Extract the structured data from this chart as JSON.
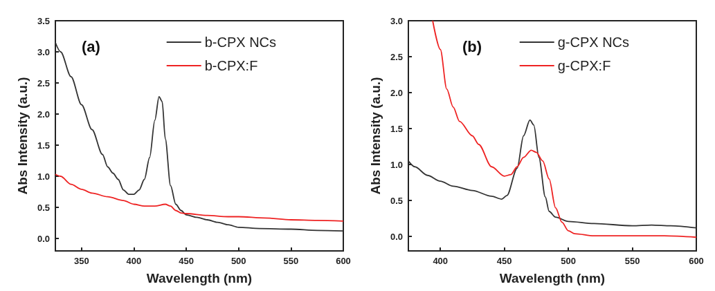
{
  "chart_data": [
    {
      "type": "line",
      "xlabel": "Wavelength (nm)",
      "ylabel": "Abs Intensity (a.u.)",
      "annotations": [
        "(a)"
      ],
      "xlim": [
        325,
        600
      ],
      "xticks": [
        350,
        400,
        450,
        500,
        550,
        600
      ],
      "ylim": [
        -0.2,
        3.5
      ],
      "yticks": [
        {
          "value": 0,
          "label": "0.0"
        },
        0.5,
        {
          "value": 1,
          "label": "1.0"
        },
        1.5,
        {
          "value": 2,
          "label": "2.0"
        },
        2.5,
        {
          "value": 3,
          "label": "3.0"
        },
        3.5
      ],
      "legend": "top",
      "grid": false,
      "marker": "none",
      "series": [
        {
          "name": "b-CPX NCs",
          "color": "#333333",
          "x": [
            325,
            330,
            340,
            350,
            360,
            370,
            375,
            380,
            385,
            390,
            395,
            400,
            405,
            410,
            415,
            420,
            424,
            427,
            430,
            435,
            440,
            445,
            450,
            460,
            470,
            480,
            490,
            500,
            520,
            550,
            575,
            600
          ],
          "values": [
            3.15,
            3.0,
            2.6,
            2.15,
            1.75,
            1.35,
            1.15,
            1.05,
            0.95,
            0.78,
            0.71,
            0.71,
            0.78,
            0.95,
            1.3,
            1.9,
            2.28,
            2.2,
            1.6,
            0.85,
            0.55,
            0.45,
            0.38,
            0.34,
            0.3,
            0.26,
            0.22,
            0.18,
            0.16,
            0.15,
            0.13,
            0.12
          ]
        },
        {
          "name": "b-CPX:F",
          "color": "#ee2222",
          "x": [
            325,
            330,
            340,
            350,
            360,
            375,
            390,
            400,
            410,
            420,
            430,
            435,
            440,
            445,
            450,
            470,
            490,
            500,
            525,
            550,
            575,
            600
          ],
          "values": [
            1.03,
            1.0,
            0.87,
            0.79,
            0.73,
            0.67,
            0.61,
            0.55,
            0.52,
            0.52,
            0.55,
            0.52,
            0.45,
            0.41,
            0.4,
            0.37,
            0.35,
            0.35,
            0.33,
            0.3,
            0.29,
            0.28
          ]
        }
      ]
    },
    {
      "type": "line",
      "xlabel": "Wavelength (nm)",
      "ylabel": "Abs Intensity (a.u.)",
      "annotations": [
        "(b)"
      ],
      "xlim": [
        375,
        600
      ],
      "xticks": [
        400,
        450,
        500,
        550,
        600
      ],
      "ylim": [
        -0.2,
        3.0
      ],
      "yticks": [
        {
          "value": 0,
          "label": "0.0"
        },
        0.5,
        {
          "value": 1,
          "label": "1.0"
        },
        1.5,
        {
          "value": 2,
          "label": "2.0"
        },
        2.5,
        {
          "value": 3,
          "label": "3.0"
        }
      ],
      "legend": "top",
      "grid": false,
      "marker": "none",
      "series": [
        {
          "name": "g-CPX NCs",
          "color": "#333333",
          "x": [
            375,
            380,
            390,
            400,
            410,
            425,
            440,
            448,
            452,
            460,
            465,
            470,
            473,
            477,
            482,
            485,
            490,
            500,
            520,
            550,
            565,
            580,
            600
          ],
          "values": [
            1.05,
            0.97,
            0.85,
            0.77,
            0.7,
            0.64,
            0.56,
            0.52,
            0.57,
            0.95,
            1.4,
            1.62,
            1.55,
            1.1,
            0.55,
            0.35,
            0.27,
            0.21,
            0.18,
            0.15,
            0.16,
            0.15,
            0.12
          ]
        },
        {
          "name": "g-CPX:F",
          "color": "#ee2222",
          "x": [
            394,
            400,
            405,
            410,
            415,
            425,
            430,
            440,
            450,
            455,
            460,
            465,
            471,
            475,
            480,
            485,
            490,
            495,
            500,
            505,
            520,
            550,
            575,
            600
          ],
          "values": [
            3.0,
            2.6,
            2.05,
            1.8,
            1.6,
            1.4,
            1.28,
            0.97,
            0.84,
            0.86,
            0.97,
            1.1,
            1.2,
            1.17,
            1.05,
            0.8,
            0.4,
            0.2,
            0.08,
            0.04,
            0.01,
            0.01,
            0.01,
            -0.01
          ]
        }
      ]
    }
  ]
}
